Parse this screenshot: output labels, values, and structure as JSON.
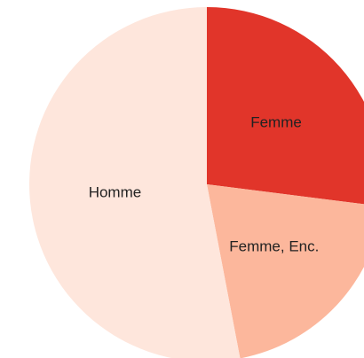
{
  "chart_data": {
    "type": "pie",
    "categories": [
      "Femme",
      "Femme, Enc.",
      "Homme"
    ],
    "values": [
      27,
      20,
      53
    ],
    "colors": [
      "#e1352a",
      "#fcb79c",
      "#fee6dc"
    ]
  }
}
